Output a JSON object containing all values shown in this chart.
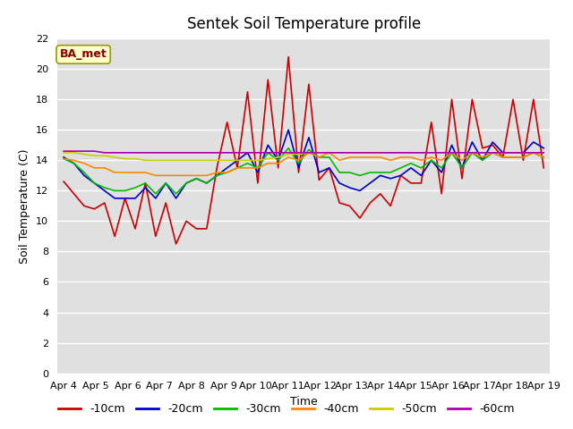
{
  "title": "Sentek Soil Temperature profile",
  "xlabel": "Time",
  "ylabel": "Soil Temperature (C)",
  "annotation": "BA_met",
  "ylim": [
    0,
    22
  ],
  "yticks": [
    0,
    2,
    4,
    6,
    8,
    10,
    12,
    14,
    16,
    18,
    20,
    22
  ],
  "x_labels": [
    "Apr 4",
    "Apr 5",
    "Apr 6",
    "Apr 7",
    "Apr 8",
    "Apr 9",
    "Apr 10",
    "Apr 11",
    "Apr 12",
    "Apr 13",
    "Apr 14",
    "Apr 15",
    "Apr 16",
    "Apr 17",
    "Apr 18",
    "Apr 19"
  ],
  "bg_color": "#e0e0e0",
  "series": {
    "-10cm": {
      "color": "#cc0000",
      "values": [
        12.6,
        11.8,
        11.0,
        10.8,
        11.2,
        9.0,
        11.5,
        9.5,
        12.5,
        9.0,
        11.2,
        8.5,
        10.0,
        9.5,
        9.5,
        13.5,
        16.5,
        13.5,
        18.5,
        12.5,
        19.3,
        13.5,
        20.8,
        13.2,
        19.0,
        12.7,
        13.5,
        11.2,
        11.0,
        10.2,
        11.2,
        11.8,
        11.0,
        13.0,
        12.5,
        12.5,
        16.5,
        11.8,
        18.0,
        12.8,
        18.0,
        14.8,
        15.0,
        14.2,
        18.0,
        14.0,
        18.0,
        13.5
      ]
    },
    "-20cm": {
      "color": "#0000cc",
      "values": [
        14.2,
        13.8,
        13.0,
        12.5,
        12.0,
        11.5,
        11.5,
        11.5,
        12.2,
        11.5,
        12.5,
        11.5,
        12.5,
        12.8,
        12.5,
        13.0,
        13.5,
        14.0,
        14.5,
        13.2,
        15.0,
        14.0,
        16.0,
        13.5,
        15.5,
        13.2,
        13.5,
        12.5,
        12.2,
        12.0,
        12.5,
        13.0,
        12.8,
        13.0,
        13.5,
        13.0,
        14.0,
        13.2,
        15.0,
        13.5,
        15.2,
        14.0,
        15.2,
        14.5,
        14.5,
        14.5,
        15.2,
        14.8
      ]
    },
    "-30cm": {
      "color": "#00bb00",
      "values": [
        14.1,
        13.8,
        13.2,
        12.5,
        12.2,
        12.0,
        12.0,
        12.2,
        12.5,
        11.8,
        12.5,
        11.8,
        12.5,
        12.8,
        12.5,
        13.0,
        13.2,
        13.5,
        13.8,
        13.5,
        14.5,
        14.0,
        14.8,
        13.8,
        14.7,
        14.2,
        14.2,
        13.2,
        13.2,
        13.0,
        13.2,
        13.2,
        13.2,
        13.5,
        13.8,
        13.5,
        14.0,
        13.5,
        14.5,
        13.5,
        14.5,
        14.0,
        14.5,
        14.2,
        14.2,
        14.2,
        14.5,
        14.2
      ]
    },
    "-40cm": {
      "color": "#ff8800",
      "values": [
        14.1,
        14.0,
        13.8,
        13.5,
        13.5,
        13.2,
        13.2,
        13.2,
        13.2,
        13.0,
        13.0,
        13.0,
        13.0,
        13.0,
        13.0,
        13.2,
        13.2,
        13.5,
        13.5,
        13.5,
        13.8,
        13.8,
        14.2,
        14.0,
        14.5,
        14.2,
        14.5,
        14.0,
        14.2,
        14.2,
        14.2,
        14.2,
        14.0,
        14.2,
        14.2,
        14.0,
        14.2,
        14.0,
        14.5,
        14.0,
        14.5,
        14.2,
        14.5,
        14.2,
        14.2,
        14.2,
        14.5,
        14.2
      ]
    },
    "-50cm": {
      "color": "#cccc00",
      "values": [
        14.5,
        14.5,
        14.4,
        14.3,
        14.3,
        14.2,
        14.1,
        14.1,
        14.0,
        14.0,
        14.0,
        14.0,
        14.0,
        14.0,
        14.0,
        14.0,
        14.0,
        14.0,
        14.0,
        14.0,
        14.1,
        14.2,
        14.4,
        14.4,
        14.5,
        14.5,
        14.5,
        14.5,
        14.5,
        14.5,
        14.5,
        14.5,
        14.5,
        14.5,
        14.5,
        14.5,
        14.5,
        14.5,
        14.5,
        14.5,
        14.5,
        14.5,
        14.5,
        14.5,
        14.5,
        14.5,
        14.5,
        14.5
      ]
    },
    "-60cm": {
      "color": "#aa00aa",
      "values": [
        14.6,
        14.6,
        14.6,
        14.6,
        14.5,
        14.5,
        14.5,
        14.5,
        14.5,
        14.5,
        14.5,
        14.5,
        14.5,
        14.5,
        14.5,
        14.5,
        14.5,
        14.5,
        14.5,
        14.5,
        14.5,
        14.5,
        14.5,
        14.5,
        14.5,
        14.5,
        14.5,
        14.5,
        14.5,
        14.5,
        14.5,
        14.5,
        14.5,
        14.5,
        14.5,
        14.5,
        14.5,
        14.5,
        14.5,
        14.5,
        14.5,
        14.5,
        14.5,
        14.5,
        14.5,
        14.5,
        14.5,
        14.5
      ]
    }
  },
  "title_fontsize": 12,
  "axis_label_fontsize": 9,
  "tick_fontsize": 8,
  "legend_fontsize": 9
}
